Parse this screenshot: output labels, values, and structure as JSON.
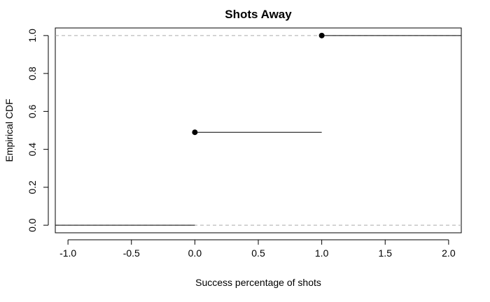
{
  "chart_data": {
    "type": "line",
    "plot_style": "step-ecdf",
    "title": "Shots Away",
    "xlabel": "Success percentage of shots",
    "ylabel": "Empirical CDF",
    "xlim": [
      -1.1,
      2.1
    ],
    "ylim": [
      -0.04,
      1.04
    ],
    "xticks": [
      -1.0,
      -0.5,
      0.0,
      0.5,
      1.0,
      1.5,
      2.0
    ],
    "xtick_labels": [
      "-1.0",
      "-0.5",
      "0.0",
      "0.5",
      "1.0",
      "1.5",
      "2.0"
    ],
    "yticks": [
      0.0,
      0.2,
      0.4,
      0.6,
      0.8,
      1.0
    ],
    "ytick_labels": [
      "0.0",
      "0.2",
      "0.4",
      "0.6",
      "0.8",
      "1.0"
    ],
    "reference_lines_y": [
      0.0,
      1.0
    ],
    "reference_line_style": "dashed-gray",
    "steps": [
      {
        "x_start": -1.1,
        "x_end": 0.0,
        "y": 0.0,
        "point": false
      },
      {
        "x_start": 0.0,
        "x_end": 1.0,
        "y": 0.49,
        "point": true
      },
      {
        "x_start": 1.0,
        "x_end": 2.1,
        "y": 1.0,
        "point": true
      }
    ]
  }
}
